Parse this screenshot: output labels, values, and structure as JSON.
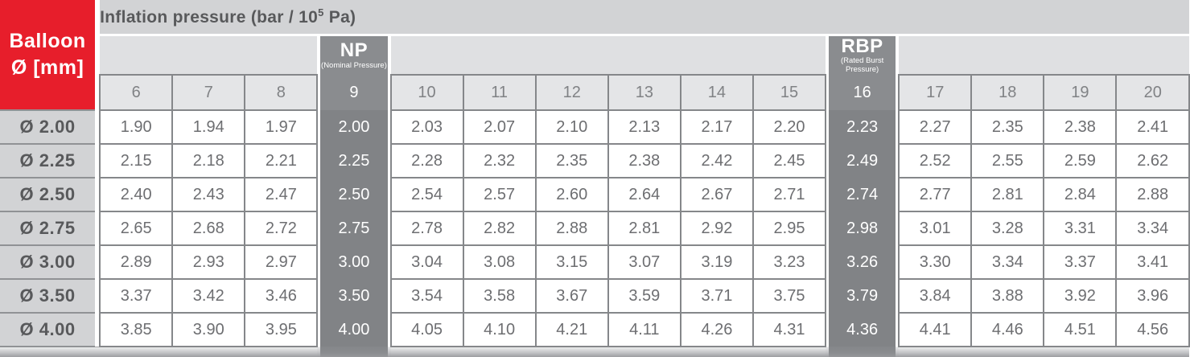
{
  "header": {
    "title_prefix": "Inflation pressure (bar / 10",
    "title_sup": "5",
    "title_suffix": " Pa)",
    "corner_line1": "Balloon",
    "corner_line2": "Ø [mm]",
    "np_abbr": "NP",
    "np_full": "(Nominal Pressure)",
    "rbp_abbr": "RBP",
    "rbp_full": "(Rated Burst Pressure)"
  },
  "colors": {
    "accent_red": "#e71e2b",
    "title_band_bg": "#d2d3d5",
    "band_bg": "#dfe0e2",
    "number_row_bg": "#e4e5e7",
    "dark_column_bg": "#85878a",
    "cell_text": "#6d6e71",
    "header_text": "#58595b",
    "border": "#85878a"
  },
  "chart_data": {
    "type": "table",
    "title": "Inflation pressure (bar / 10^5 Pa)",
    "row_header": "Balloon Ø [mm]",
    "columns": [
      "6",
      "7",
      "8",
      "9",
      "10",
      "11",
      "12",
      "13",
      "14",
      "15",
      "16",
      "17",
      "18",
      "19",
      "20"
    ],
    "np_col_index": 3,
    "rbp_col_index": 10,
    "np_column_label": "9",
    "rbp_column_label": "16",
    "rows": [
      {
        "label": "Ø 2.00",
        "values": [
          "1.90",
          "1.94",
          "1.97",
          "2.00",
          "2.03",
          "2.07",
          "2.10",
          "2.13",
          "2.17",
          "2.20",
          "2.23",
          "2.27",
          "2.35",
          "2.38",
          "2.41"
        ]
      },
      {
        "label": "Ø 2.25",
        "values": [
          "2.15",
          "2.18",
          "2.21",
          "2.25",
          "2.28",
          "2.32",
          "2.35",
          "2.38",
          "2.42",
          "2.45",
          "2.49",
          "2.52",
          "2.55",
          "2.59",
          "2.62"
        ]
      },
      {
        "label": "Ø 2.50",
        "values": [
          "2.40",
          "2.43",
          "2.47",
          "2.50",
          "2.54",
          "2.57",
          "2.60",
          "2.64",
          "2.67",
          "2.71",
          "2.74",
          "2.77",
          "2.81",
          "2.84",
          "2.88"
        ]
      },
      {
        "label": "Ø 2.75",
        "values": [
          "2.65",
          "2.68",
          "2.72",
          "2.75",
          "2.78",
          "2.82",
          "2.88",
          "2.81",
          "2.92",
          "2.95",
          "2.98",
          "3.01",
          "3.28",
          "3.31",
          "3.34"
        ]
      },
      {
        "label": "Ø 3.00",
        "values": [
          "2.89",
          "2.93",
          "2.97",
          "3.00",
          "3.04",
          "3.08",
          "3.15",
          "3.07",
          "3.19",
          "3.23",
          "3.26",
          "3.30",
          "3.34",
          "3.37",
          "3.41"
        ]
      },
      {
        "label": "Ø 3.50",
        "values": [
          "3.37",
          "3.42",
          "3.46",
          "3.50",
          "3.54",
          "3.58",
          "3.67",
          "3.59",
          "3.71",
          "3.75",
          "3.79",
          "3.84",
          "3.88",
          "3.92",
          "3.96"
        ]
      },
      {
        "label": "Ø 4.00",
        "values": [
          "3.85",
          "3.90",
          "3.95",
          "4.00",
          "4.05",
          "4.10",
          "4.21",
          "4.11",
          "4.26",
          "4.31",
          "4.36",
          "4.41",
          "4.46",
          "4.51",
          "4.56"
        ]
      }
    ]
  }
}
